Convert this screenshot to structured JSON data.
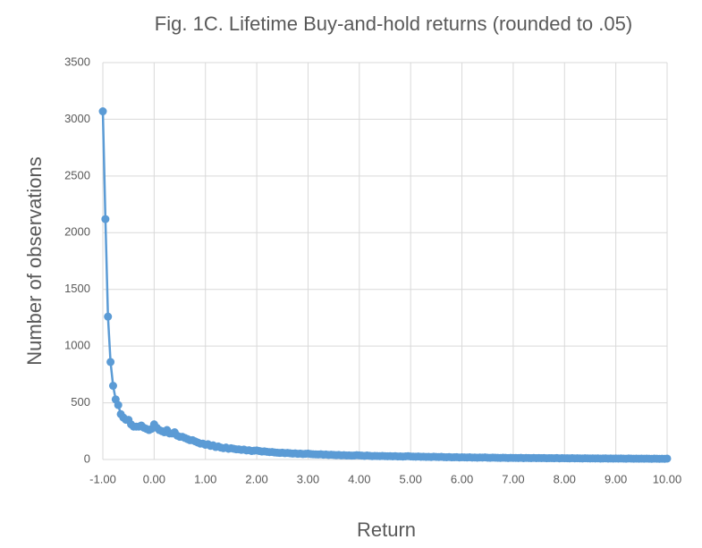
{
  "chart_data": {
    "type": "line",
    "title": "Fig. 1C. Lifetime Buy-and-hold returns (rounded to .05)",
    "x_label": "Return",
    "y_label": "Number of observations",
    "color": "#5b9bd5",
    "grid": true,
    "xlim": [
      -1,
      10
    ],
    "ylim": [
      0,
      3500
    ],
    "xticks": [
      {
        "value": -1,
        "label": "-1.00"
      },
      {
        "value": 0,
        "label": "0.00"
      },
      {
        "value": 1,
        "label": "1.00"
      },
      {
        "value": 2,
        "label": "2.00"
      },
      {
        "value": 3,
        "label": "3.00"
      },
      {
        "value": 4,
        "label": "4.00"
      },
      {
        "value": 5,
        "label": "5.00"
      },
      {
        "value": 6,
        "label": "6.00"
      },
      {
        "value": 7,
        "label": "7.00"
      },
      {
        "value": 8,
        "label": "8.00"
      },
      {
        "value": 9,
        "label": "9.00"
      },
      {
        "value": 10,
        "label": "10.00"
      }
    ],
    "yticks": [
      0,
      500,
      1000,
      1500,
      2000,
      2500,
      3000,
      3500
    ],
    "x": [
      -1,
      -0.95,
      -0.9,
      -0.85,
      -0.8,
      -0.75,
      -0.7,
      -0.65,
      -0.6,
      -0.55,
      -0.5,
      -0.45,
      -0.4,
      -0.35,
      -0.3,
      -0.25,
      -0.2,
      -0.15,
      -0.1,
      -0.05,
      0,
      0.05,
      0.1,
      0.15,
      0.2,
      0.25,
      0.3,
      0.35,
      0.4,
      0.45,
      0.5,
      0.55,
      0.6,
      0.65,
      0.7,
      0.75,
      0.8,
      0.85,
      0.9,
      0.95,
      1,
      1.05,
      1.1,
      1.15,
      1.2,
      1.25,
      1.3,
      1.35,
      1.4,
      1.45,
      1.5,
      1.55,
      1.6,
      1.65,
      1.7,
      1.75,
      1.8,
      1.85,
      1.9,
      1.95,
      2,
      2.05,
      2.1,
      2.15,
      2.2,
      2.25,
      2.3,
      2.35,
      2.4,
      2.45,
      2.5,
      2.55,
      2.6,
      2.65,
      2.7,
      2.75,
      2.8,
      2.85,
      2.9,
      2.95,
      3,
      3.05,
      3.1,
      3.15,
      3.2,
      3.25,
      3.3,
      3.35,
      3.4,
      3.45,
      3.5,
      3.55,
      3.6,
      3.65,
      3.7,
      3.75,
      3.8,
      3.85,
      3.9,
      3.95,
      4,
      4.05,
      4.1,
      4.15,
      4.2,
      4.25,
      4.3,
      4.35,
      4.4,
      4.45,
      4.5,
      4.55,
      4.6,
      4.65,
      4.7,
      4.75,
      4.8,
      4.85,
      4.9,
      4.95,
      5,
      5.05,
      5.1,
      5.15,
      5.2,
      5.25,
      5.3,
      5.35,
      5.4,
      5.45,
      5.5,
      5.55,
      5.6,
      5.65,
      5.7,
      5.75,
      5.8,
      5.85,
      5.9,
      5.95,
      6,
      6.05,
      6.1,
      6.15,
      6.2,
      6.25,
      6.3,
      6.35,
      6.4,
      6.45,
      6.5,
      6.55,
      6.6,
      6.65,
      6.7,
      6.75,
      6.8,
      6.85,
      6.9,
      6.95,
      7,
      7.05,
      7.1,
      7.15,
      7.2,
      7.25,
      7.3,
      7.35,
      7.4,
      7.45,
      7.5,
      7.55,
      7.6,
      7.65,
      7.7,
      7.75,
      7.8,
      7.85,
      7.9,
      7.95,
      8,
      8.05,
      8.1,
      8.15,
      8.2,
      8.25,
      8.3,
      8.35,
      8.4,
      8.45,
      8.5,
      8.55,
      8.6,
      8.65,
      8.7,
      8.75,
      8.8,
      8.85,
      8.9,
      8.95,
      9,
      9.05,
      9.1,
      9.15,
      9.2,
      9.25,
      9.3,
      9.35,
      9.4,
      9.45,
      9.5,
      9.55,
      9.6,
      9.65,
      9.7,
      9.75,
      9.8,
      9.85,
      9.9,
      9.95,
      10
    ],
    "values": [
      3070,
      2120,
      1260,
      860,
      650,
      530,
      480,
      400,
      370,
      350,
      350,
      310,
      290,
      290,
      290,
      300,
      280,
      270,
      260,
      270,
      310,
      280,
      260,
      250,
      240,
      260,
      230,
      230,
      240,
      210,
      200,
      200,
      190,
      180,
      170,
      170,
      160,
      150,
      140,
      140,
      130,
      135,
      120,
      125,
      110,
      115,
      105,
      100,
      105,
      95,
      100,
      95,
      90,
      90,
      85,
      88,
      80,
      82,
      75,
      78,
      80,
      75,
      70,
      72,
      68,
      65,
      66,
      62,
      60,
      58,
      60,
      56,
      58,
      55,
      52,
      54,
      50,
      52,
      48,
      50,
      52,
      48,
      46,
      45,
      44,
      46,
      42,
      44,
      40,
      42,
      40,
      38,
      40,
      36,
      38,
      35,
      36,
      34,
      35,
      38,
      36,
      34,
      32,
      35,
      33,
      30,
      32,
      31,
      30,
      32,
      30,
      29,
      30,
      28,
      30,
      27,
      28,
      26,
      28,
      30,
      27,
      26,
      25,
      27,
      24,
      25,
      23,
      24,
      22,
      25,
      23,
      22,
      24,
      21,
      20,
      22,
      19,
      20,
      21,
      18,
      20,
      19,
      18,
      20,
      17,
      18,
      16,
      18,
      17,
      19,
      16,
      15,
      17,
      16,
      15,
      14,
      16,
      15,
      13,
      15,
      14,
      14,
      13,
      15,
      12,
      14,
      13,
      12,
      14,
      12,
      13,
      12,
      13,
      11,
      12,
      12,
      11,
      13,
      10,
      12,
      11,
      11,
      10,
      12,
      10,
      11,
      10,
      9,
      11,
      10,
      9,
      10,
      9,
      10,
      8,
      9,
      10,
      8,
      9,
      8,
      9,
      8,
      9,
      8,
      7,
      9,
      8,
      7,
      8,
      7,
      8,
      7,
      8,
      7,
      6,
      8,
      7,
      6,
      7,
      6,
      8
    ]
  }
}
